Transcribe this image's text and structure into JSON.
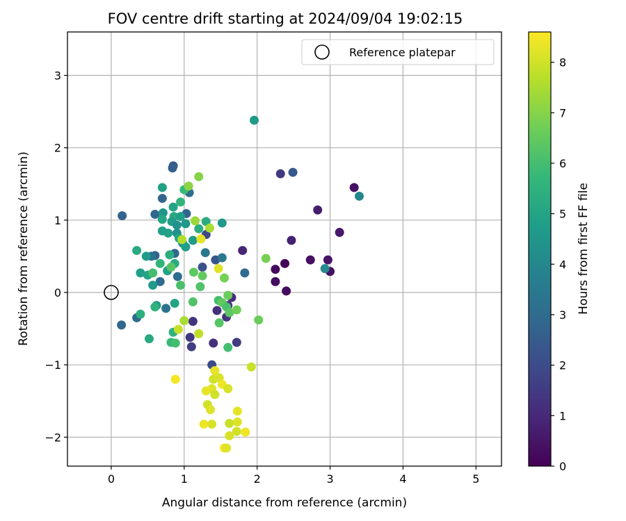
{
  "chart_data": {
    "type": "scatter",
    "title": "FOV centre drift starting at 2024/09/04 19:02:15",
    "xlabel": "Angular distance from reference (arcmin)",
    "ylabel": "Rotation from reference (arcmin)",
    "xlim": [
      -0.6,
      5.35
    ],
    "ylim": [
      -2.4,
      3.6
    ],
    "xticks": [
      "0",
      "1",
      "2",
      "3",
      "4",
      "5"
    ],
    "yticks": [
      "−2",
      "−1",
      "0",
      "1",
      "2",
      "3"
    ],
    "grid": true,
    "legend": {
      "position": "top-right",
      "entries": [
        "Reference platepar"
      ]
    },
    "reference_point": {
      "x": 0,
      "y": 0
    },
    "colorbar": {
      "label": "Hours from first FF file",
      "range": [
        0,
        8.6
      ],
      "ticks": [
        "0",
        "1",
        "2",
        "3",
        "4",
        "5",
        "6",
        "7",
        "8"
      ],
      "colormap": "viridis",
      "colors": [
        "#440154",
        "#482878",
        "#3e4989",
        "#31688e",
        "#26828e",
        "#1f9e89",
        "#35b779",
        "#6ece58",
        "#b5de2b",
        "#fde725"
      ]
    },
    "points": [
      {
        "x": 2.38,
        "y": 0.4,
        "t": 0.1
      },
      {
        "x": 2.25,
        "y": 0.32,
        "t": 0.2
      },
      {
        "x": 2.25,
        "y": 0.15,
        "t": 0.3
      },
      {
        "x": 2.4,
        "y": 0.02,
        "t": 0.3
      },
      {
        "x": 2.73,
        "y": 0.45,
        "t": 0.4
      },
      {
        "x": 2.97,
        "y": 0.45,
        "t": 0.5
      },
      {
        "x": 3.0,
        "y": 0.29,
        "t": 0.4
      },
      {
        "x": 2.83,
        "y": 1.14,
        "t": 0.7
      },
      {
        "x": 3.33,
        "y": 1.45,
        "t": 0.4
      },
      {
        "x": 3.13,
        "y": 0.83,
        "t": 0.6
      },
      {
        "x": 2.47,
        "y": 0.72,
        "t": 0.8
      },
      {
        "x": 1.8,
        "y": 0.58,
        "t": 0.9
      },
      {
        "x": 2.32,
        "y": 1.64,
        "t": 1.5
      },
      {
        "x": 1.45,
        "y": -0.25,
        "t": 1.2
      },
      {
        "x": 1.58,
        "y": -0.34,
        "t": 1.3
      },
      {
        "x": 1.65,
        "y": -0.07,
        "t": 1.1
      },
      {
        "x": 1.6,
        "y": -0.18,
        "t": 1.4
      },
      {
        "x": 1.4,
        "y": -0.7,
        "t": 1.2
      },
      {
        "x": 1.72,
        "y": -0.69,
        "t": 1.5
      },
      {
        "x": 1.12,
        "y": -0.4,
        "t": 1.3
      },
      {
        "x": 1.1,
        "y": -0.75,
        "t": 1.6
      },
      {
        "x": 1.08,
        "y": -0.62,
        "t": 1.4
      },
      {
        "x": 1.38,
        "y": -1.0,
        "t": 2.0
      },
      {
        "x": 1.3,
        "y": 0.8,
        "t": 1.9
      },
      {
        "x": 2.49,
        "y": 1.66,
        "t": 2.4
      },
      {
        "x": 1.43,
        "y": 0.45,
        "t": 2.3
      },
      {
        "x": 1.25,
        "y": 0.35,
        "t": 2.2
      },
      {
        "x": 0.85,
        "y": 1.75,
        "t": 2.4
      },
      {
        "x": 0.84,
        "y": 1.72,
        "t": 2.6
      },
      {
        "x": 0.15,
        "y": 1.06,
        "t": 2.7
      },
      {
        "x": 0.7,
        "y": 1.3,
        "t": 2.8
      },
      {
        "x": 0.6,
        "y": 1.08,
        "t": 2.9
      },
      {
        "x": 1.03,
        "y": 1.09,
        "t": 2.8
      },
      {
        "x": 1.07,
        "y": 1.38,
        "t": 3.0
      },
      {
        "x": 0.14,
        "y": -0.45,
        "t": 2.8
      },
      {
        "x": 0.35,
        "y": -0.35,
        "t": 3.0
      },
      {
        "x": 0.6,
        "y": 0.51,
        "t": 2.7
      },
      {
        "x": 0.87,
        "y": 0.54,
        "t": 2.9
      },
      {
        "x": 0.67,
        "y": 0.15,
        "t": 3.0
      },
      {
        "x": 0.91,
        "y": 0.22,
        "t": 3.1
      },
      {
        "x": 1.83,
        "y": 0.27,
        "t": 3.0
      },
      {
        "x": 0.75,
        "y": -0.22,
        "t": 3.3
      },
      {
        "x": 1.29,
        "y": 0.55,
        "t": 3.4
      },
      {
        "x": 0.55,
        "y": 0.5,
        "t": 3.2
      },
      {
        "x": 1.52,
        "y": 0.48,
        "t": 3.5
      },
      {
        "x": 1.96,
        "y": 2.38,
        "t": 4.6
      },
      {
        "x": 3.4,
        "y": 1.33,
        "t": 4.0
      },
      {
        "x": 2.93,
        "y": 0.33,
        "t": 4.1
      },
      {
        "x": 0.71,
        "y": 1.1,
        "t": 4.5
      },
      {
        "x": 0.7,
        "y": 1.45,
        "t": 4.9
      },
      {
        "x": 0.85,
        "y": 1.18,
        "t": 5.0
      },
      {
        "x": 0.86,
        "y": 1.05,
        "t": 5.2
      },
      {
        "x": 0.95,
        "y": 1.05,
        "t": 4.8
      },
      {
        "x": 0.83,
        "y": 0.98,
        "t": 4.7
      },
      {
        "x": 0.9,
        "y": 0.93,
        "t": 4.4
      },
      {
        "x": 1.02,
        "y": 0.95,
        "t": 4.6
      },
      {
        "x": 0.9,
        "y": 0.82,
        "t": 4.3
      },
      {
        "x": 0.78,
        "y": 0.82,
        "t": 4.9
      },
      {
        "x": 0.7,
        "y": 0.85,
        "t": 4.8
      },
      {
        "x": 0.93,
        "y": 0.75,
        "t": 5.0
      },
      {
        "x": 1.12,
        "y": 0.72,
        "t": 4.7
      },
      {
        "x": 0.98,
        "y": 0.68,
        "t": 4.4
      },
      {
        "x": 1.02,
        "y": 0.63,
        "t": 4.8
      },
      {
        "x": 1.3,
        "y": 0.98,
        "t": 5.3
      },
      {
        "x": 1.52,
        "y": 0.96,
        "t": 4.6
      },
      {
        "x": 1.2,
        "y": 0.88,
        "t": 5.4
      },
      {
        "x": 0.7,
        "y": 1.01,
        "t": 5.1
      },
      {
        "x": 0.35,
        "y": 0.58,
        "t": 5.2
      },
      {
        "x": 0.48,
        "y": 0.5,
        "t": 4.7
      },
      {
        "x": 0.8,
        "y": 0.52,
        "t": 5.4
      },
      {
        "x": 0.4,
        "y": 0.27,
        "t": 4.8
      },
      {
        "x": 0.5,
        "y": 0.24,
        "t": 5.0
      },
      {
        "x": 0.57,
        "y": 0.1,
        "t": 4.6
      },
      {
        "x": 0.67,
        "y": 0.4,
        "t": 5.6
      },
      {
        "x": 0.77,
        "y": 0.3,
        "t": 4.9
      },
      {
        "x": 0.87,
        "y": 0.4,
        "t": 5.3
      },
      {
        "x": 0.62,
        "y": -0.18,
        "t": 4.5
      },
      {
        "x": 0.4,
        "y": -0.3,
        "t": 5.4
      },
      {
        "x": 0.6,
        "y": -0.2,
        "t": 5.5
      },
      {
        "x": 0.87,
        "y": -0.15,
        "t": 5.0
      },
      {
        "x": 0.52,
        "y": -0.64,
        "t": 5.2
      },
      {
        "x": 0.85,
        "y": -0.55,
        "t": 5.5
      },
      {
        "x": 0.82,
        "y": -0.69,
        "t": 5.8
      },
      {
        "x": 0.88,
        "y": -0.7,
        "t": 6.0
      },
      {
        "x": 0.95,
        "y": 1.25,
        "t": 5.6
      },
      {
        "x": 1.0,
        "y": 1.42,
        "t": 5.8
      },
      {
        "x": 0.95,
        "y": 0.1,
        "t": 6.1
      },
      {
        "x": 0.57,
        "y": 0.27,
        "t": 6.0
      },
      {
        "x": 0.82,
        "y": 0.35,
        "t": 6.3
      },
      {
        "x": 1.13,
        "y": 0.28,
        "t": 6.4
      },
      {
        "x": 1.22,
        "y": 0.08,
        "t": 6.2
      },
      {
        "x": 1.25,
        "y": 0.23,
        "t": 6.5
      },
      {
        "x": 1.12,
        "y": -0.13,
        "t": 6.2
      },
      {
        "x": 1.47,
        "y": -0.11,
        "t": 6.0
      },
      {
        "x": 1.52,
        "y": -0.14,
        "t": 6.5
      },
      {
        "x": 1.58,
        "y": -0.2,
        "t": 6.1
      },
      {
        "x": 1.48,
        "y": -0.42,
        "t": 6.3
      },
      {
        "x": 1.55,
        "y": 0.2,
        "t": 6.8
      },
      {
        "x": 1.6,
        "y": -0.76,
        "t": 6.0
      },
      {
        "x": 1.6,
        "y": -0.04,
        "t": 6.6
      },
      {
        "x": 1.62,
        "y": -0.28,
        "t": 6.4
      },
      {
        "x": 1.72,
        "y": -0.24,
        "t": 6.7
      },
      {
        "x": 2.02,
        "y": -0.38,
        "t": 6.6
      },
      {
        "x": 2.12,
        "y": 0.47,
        "t": 6.8
      },
      {
        "x": 1.2,
        "y": 1.6,
        "t": 7.0
      },
      {
        "x": 1.06,
        "y": 1.47,
        "t": 7.1
      },
      {
        "x": 1.15,
        "y": 0.99,
        "t": 7.3
      },
      {
        "x": 1.35,
        "y": 0.89,
        "t": 7.5
      },
      {
        "x": 0.97,
        "y": 0.73,
        "t": 7.6
      },
      {
        "x": 1.23,
        "y": 0.74,
        "t": 8.3
      },
      {
        "x": 1.47,
        "y": 0.33,
        "t": 8.2
      },
      {
        "x": 1.0,
        "y": -0.39,
        "t": 7.5
      },
      {
        "x": 1.2,
        "y": -0.57,
        "t": 7.8
      },
      {
        "x": 0.92,
        "y": -0.51,
        "t": 7.9
      },
      {
        "x": 0.88,
        "y": -1.2,
        "t": 8.5
      },
      {
        "x": 1.42,
        "y": -1.08,
        "t": 8.3
      },
      {
        "x": 1.4,
        "y": -1.2,
        "t": 8.0
      },
      {
        "x": 1.48,
        "y": -1.18,
        "t": 8.1
      },
      {
        "x": 1.52,
        "y": -1.27,
        "t": 8.4
      },
      {
        "x": 1.38,
        "y": -1.33,
        "t": 8.2
      },
      {
        "x": 1.42,
        "y": -1.41,
        "t": 8.0
      },
      {
        "x": 1.3,
        "y": -1.36,
        "t": 8.3
      },
      {
        "x": 1.6,
        "y": -1.33,
        "t": 8.1
      },
      {
        "x": 1.92,
        "y": -1.03,
        "t": 7.9
      },
      {
        "x": 1.32,
        "y": -1.55,
        "t": 8.0
      },
      {
        "x": 1.36,
        "y": -1.62,
        "t": 8.2
      },
      {
        "x": 1.27,
        "y": -1.82,
        "t": 8.4
      },
      {
        "x": 1.38,
        "y": -1.82,
        "t": 8.1
      },
      {
        "x": 1.73,
        "y": -1.64,
        "t": 8.3
      },
      {
        "x": 1.73,
        "y": -1.79,
        "t": 8.2
      },
      {
        "x": 1.62,
        "y": -1.81,
        "t": 7.9
      },
      {
        "x": 1.72,
        "y": -1.92,
        "t": 8.0
      },
      {
        "x": 1.84,
        "y": -1.93,
        "t": 8.4
      },
      {
        "x": 1.62,
        "y": -1.98,
        "t": 8.1
      },
      {
        "x": 1.55,
        "y": -2.15,
        "t": 8.5
      },
      {
        "x": 1.58,
        "y": -2.15,
        "t": 8.2
      }
    ]
  }
}
